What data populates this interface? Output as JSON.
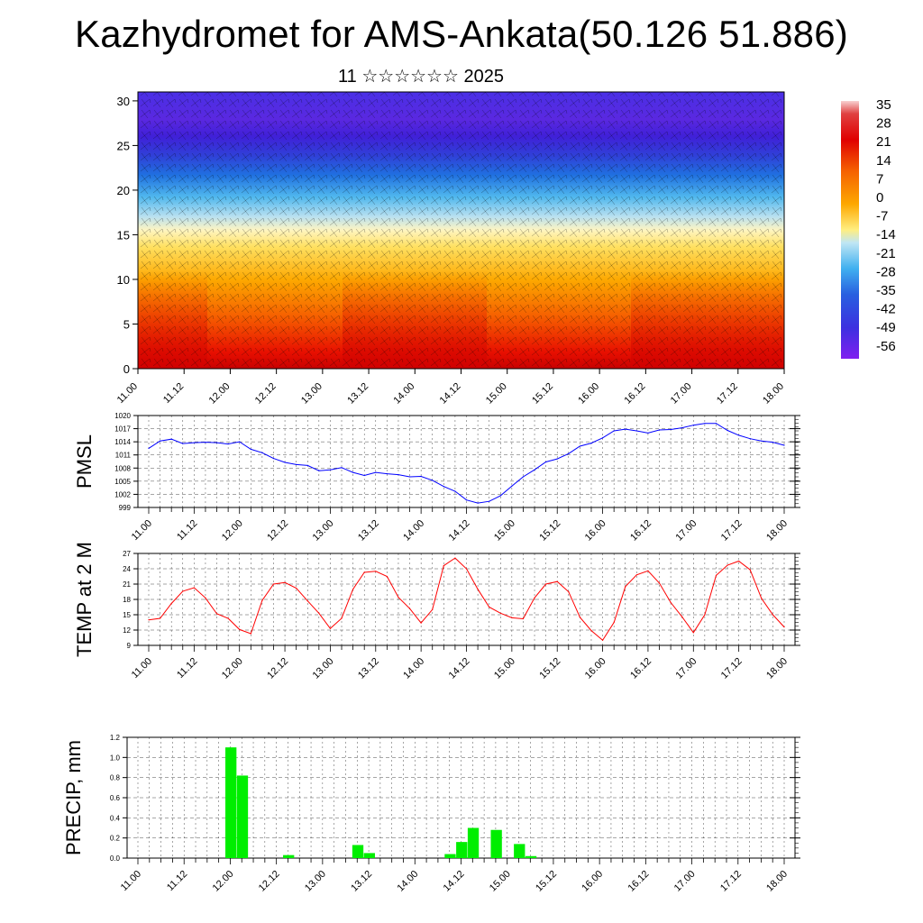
{
  "title": "Kazhydromet for AMS-Ankata(50.126 51.886)",
  "subtitle": "11 ☆☆☆☆☆☆ 2025",
  "time_labels": [
    "11.00",
    "11.12",
    "12.00",
    "12.12",
    "13.00",
    "13.12",
    "14.00",
    "14.12",
    "15.00",
    "15.12",
    "16.00",
    "16.12",
    "17.00",
    "17.12",
    "18.00"
  ],
  "colors": {
    "pmsl_line": "#0000ff",
    "temp_line": "#ff0000",
    "precip_bar": "#00ee00",
    "grid": "#000000"
  },
  "chart_data": [
    {
      "type": "heatmap",
      "name": "cross-section",
      "x": [
        "11.00",
        "11.12",
        "12.00",
        "12.12",
        "13.00",
        "13.12",
        "14.00",
        "14.12",
        "15.00",
        "15.12",
        "16.00",
        "16.12",
        "17.00",
        "17.12",
        "18.00"
      ],
      "y_ticks": [
        0,
        5,
        10,
        15,
        20,
        25,
        30
      ],
      "ylim": [
        0,
        31
      ],
      "colorbar_labels": [
        "35",
        "28",
        "21",
        "14",
        "7",
        "0",
        "-7",
        "-14",
        "-21",
        "-28",
        "-35",
        "-42",
        "-49",
        "-56"
      ],
      "overlay": "wind barbs"
    },
    {
      "type": "line",
      "name": "pmsl",
      "ylabel": "PMSL",
      "yticks": [
        999,
        1002,
        1005,
        1008,
        1011,
        1014,
        1017,
        1020
      ],
      "ylim": [
        999,
        1020
      ],
      "x_step_hours": 3,
      "values": [
        1012.5,
        1014.2,
        1014.6,
        1013.6,
        1013.8,
        1013.9,
        1013.8,
        1013.5,
        1014.0,
        1012.3,
        1011.5,
        1010.2,
        1009.3,
        1008.8,
        1008.6,
        1007.4,
        1007.6,
        1008.1,
        1007.0,
        1006.3,
        1007.0,
        1006.7,
        1006.5,
        1006.0,
        1006.1,
        1005.2,
        1003.8,
        1002.7,
        1000.7,
        1000.0,
        1000.4,
        1001.7,
        1003.9,
        1006.0,
        1007.6,
        1009.4,
        1010.1,
        1011.3,
        1013.0,
        1013.7,
        1014.9,
        1016.5,
        1016.9,
        1016.5,
        1016.0,
        1016.7,
        1016.8,
        1017.2,
        1017.8,
        1018.2,
        1018.2,
        1016.6,
        1015.5,
        1014.7,
        1014.2,
        1013.9,
        1013.2
      ]
    },
    {
      "type": "line",
      "name": "temp",
      "ylabel": "TEMP at 2 M",
      "yticks": [
        9,
        12,
        15,
        18,
        21,
        24,
        27
      ],
      "ylim": [
        9,
        27
      ],
      "x_step_hours": 3,
      "values": [
        14.0,
        14.3,
        17.2,
        19.6,
        20.3,
        18.3,
        15.2,
        14.3,
        12.1,
        11.3,
        17.8,
        21.0,
        21.3,
        20.2,
        17.7,
        15.3,
        12.3,
        14.3,
        20.0,
        23.3,
        23.5,
        22.5,
        18.4,
        16.2,
        13.4,
        16.0,
        24.6,
        26.1,
        24.0,
        20.0,
        16.5,
        15.3,
        14.4,
        14.2,
        18.3,
        21.0,
        21.5,
        19.5,
        14.5,
        11.9,
        10.0,
        13.5,
        20.5,
        22.8,
        23.6,
        21.2,
        17.4,
        14.6,
        11.5,
        15.0,
        22.7,
        24.7,
        25.5,
        23.8,
        18.2,
        15.0,
        12.6
      ]
    },
    {
      "type": "bar",
      "name": "precip",
      "ylabel": "PRECIP, mm",
      "yticks": [
        "0.0",
        "0.2",
        "0.4",
        "0.6",
        "0.8",
        "1.0",
        "1.2"
      ],
      "ylim": [
        0,
        1.2
      ],
      "x_step_hours": 3,
      "values": [
        0,
        0,
        0,
        0,
        0,
        0,
        0,
        0,
        1.1,
        0.82,
        0,
        0,
        0,
        0.03,
        0,
        0,
        0,
        0,
        0,
        0.13,
        0.05,
        0,
        0,
        0,
        0,
        0,
        0,
        0.04,
        0.16,
        0.3,
        0,
        0.28,
        0,
        0.14,
        0.02,
        0,
        0,
        0,
        0,
        0,
        0,
        0,
        0,
        0,
        0,
        0,
        0,
        0,
        0,
        0,
        0,
        0,
        0,
        0,
        0,
        0
      ]
    }
  ]
}
